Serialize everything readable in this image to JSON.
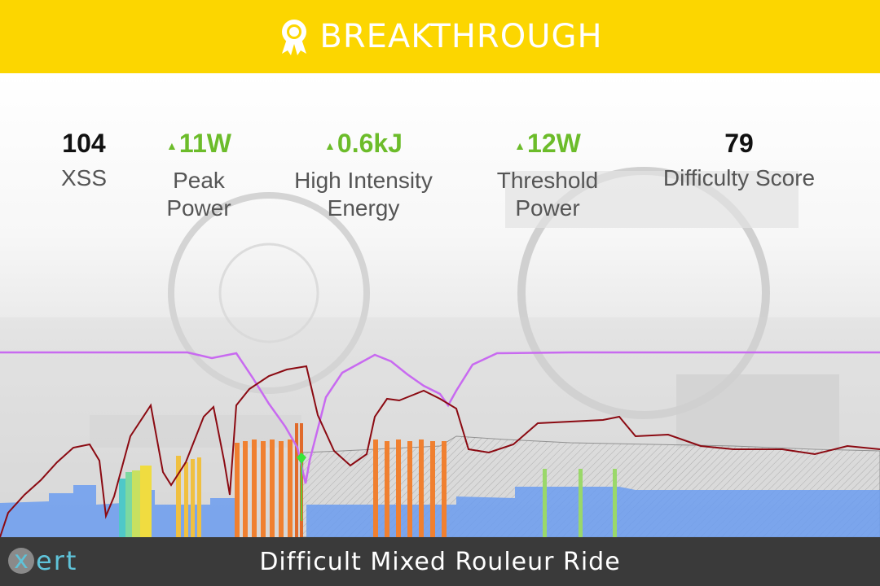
{
  "banner": {
    "title": "BREAKTHROUGH",
    "icon": "award-ribbon-icon",
    "color": "#fcd600"
  },
  "metrics": [
    {
      "value": "104",
      "label_lines": [
        "XSS"
      ],
      "trend": "none"
    },
    {
      "value": "11W",
      "label_lines": [
        "Peak",
        "Power"
      ],
      "trend": "up"
    },
    {
      "value": "0.6kJ",
      "label_lines": [
        "High Intensity",
        "Energy"
      ],
      "trend": "up"
    },
    {
      "value": "12W",
      "label_lines": [
        "Threshold",
        "Power"
      ],
      "trend": "up"
    },
    {
      "value": "79",
      "label_lines": [
        "Difficulty Score"
      ],
      "trend": "none"
    }
  ],
  "footer": {
    "ride_name": "Difficult Mixed Rouleur Ride",
    "logo_x": "x",
    "logo_rest": "ert",
    "logo_color": "#5fc3d9"
  },
  "colors": {
    "trend_up": "#6cbc2a",
    "power_line": "#8b0a12",
    "mpa_line": "#c86af0",
    "breakthrough_marker": "#39e639",
    "base_blue": "#6b9cf0"
  }
}
